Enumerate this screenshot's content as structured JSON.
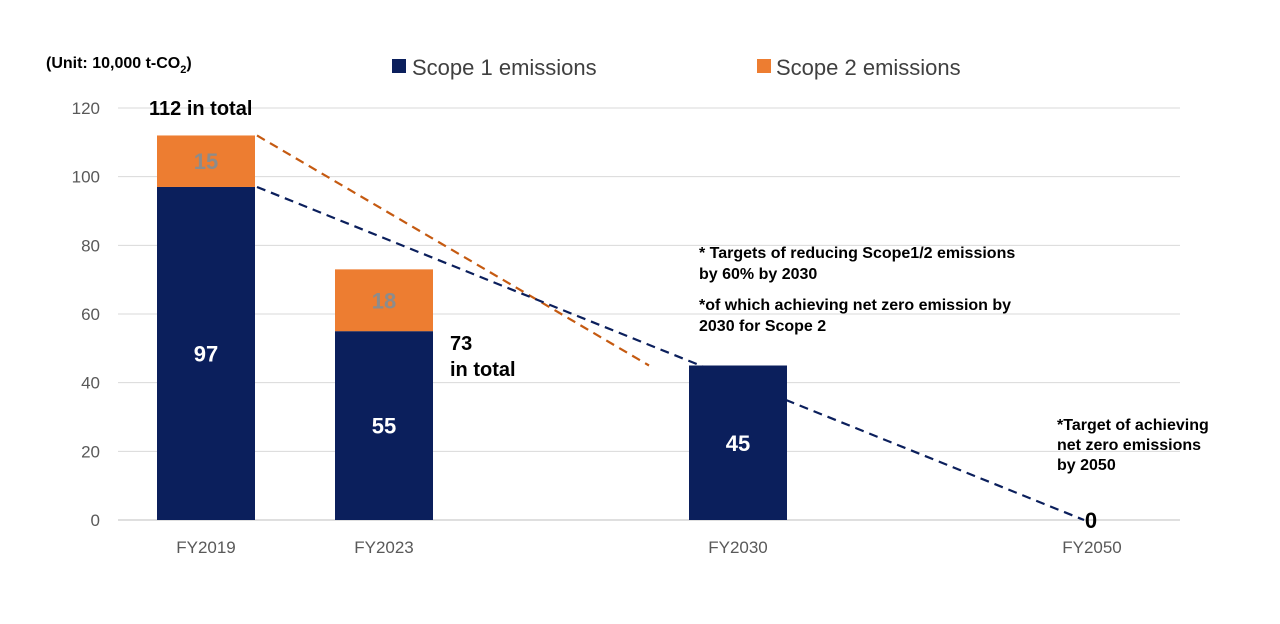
{
  "chart_data": {
    "type": "bar",
    "stacked": true,
    "unit_prefix": "(Unit: 10,000 t-CO",
    "unit_sub": "2",
    "unit_suffix": ")",
    "categories": [
      "FY2019",
      "FY2023",
      "FY2030",
      "FY2050"
    ],
    "series": [
      {
        "name": "Scope 1 emissions",
        "color": "#0b1f5c",
        "values": [
          97,
          55,
          45,
          0
        ]
      },
      {
        "name": "Scope 2 emissions",
        "color": "#ed7d31",
        "values": [
          15,
          18,
          0,
          0
        ]
      }
    ],
    "ylim": [
      0,
      120
    ],
    "yticks": [
      "0",
      "20",
      "40",
      "60",
      "80",
      "100",
      "120"
    ],
    "grid": true,
    "legend_position": "top",
    "totals": [
      {
        "lines": [
          "112 in total"
        ]
      },
      {
        "lines": [
          "73",
          "in total"
        ]
      }
    ],
    "zero_label": "0",
    "trend_lines": [
      {
        "color": "#c55a11",
        "from": {
          "category": "FY2019",
          "value": 112
        },
        "to": {
          "category": "FY2030",
          "value": 45
        }
      },
      {
        "color": "#0b1f5c",
        "from": {
          "category": "FY2019",
          "value": 97
        },
        "to": {
          "category": "FY2050",
          "value": 0
        }
      }
    ],
    "annotations": {
      "target_2030": [
        "* Targets of reducing Scope1/2 emissions",
        "by 60% by 2030",
        "*of which achieving net zero emission by",
        "2030 for Scope 2"
      ],
      "target_2050": [
        "*Target of achieving",
        "net zero emissions",
        "by 2050"
      ]
    }
  }
}
